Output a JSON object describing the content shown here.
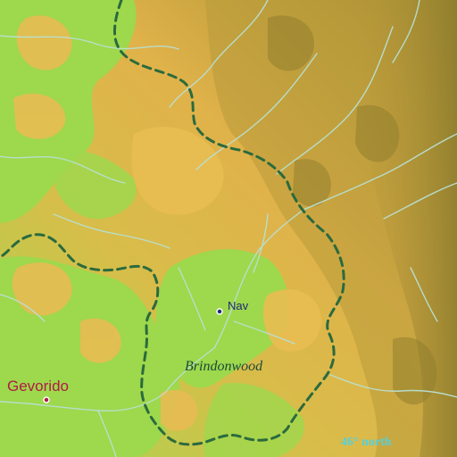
{
  "map": {
    "places": [
      {
        "name": "Gevorido",
        "kind": "town",
        "dot_color": "#b01b46"
      },
      {
        "name": "Nav",
        "kind": "village",
        "dot_color": "#1e2a7a"
      }
    ],
    "regions": [
      {
        "name": "Brindonwood"
      }
    ],
    "graticule": {
      "label": "46° north"
    },
    "colors": {
      "lowland": "#9ed84c",
      "midland": "#e2b64c",
      "highland": "#b59b38",
      "peak": "#8a7a2a",
      "river": "#b8e0d2",
      "boundary": "#2b6a3e",
      "graticule": "#55d0dc"
    }
  }
}
